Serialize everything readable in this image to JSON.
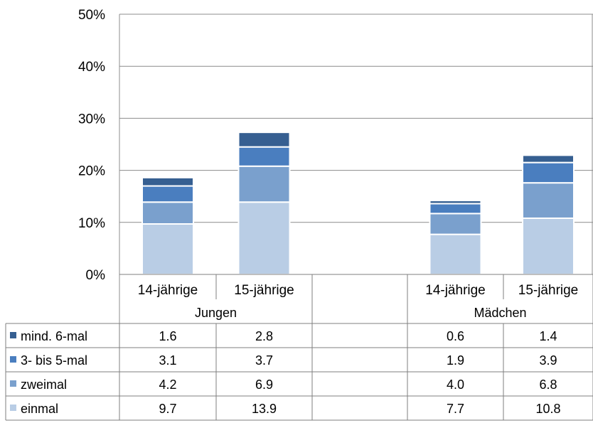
{
  "chart_data": {
    "type": "bar",
    "stacked": true,
    "y_tick_labels": [
      "0%",
      "10%",
      "20%",
      "30%",
      "40%",
      "50%"
    ],
    "ylim": [
      0,
      50
    ],
    "grid": true,
    "legend_placement": "data-table",
    "groups": [
      "Jungen",
      "",
      "Mädchen"
    ],
    "categories": [
      "14-jährige",
      "15-jährige",
      "",
      "14-jährige",
      "15-jährige"
    ],
    "series": [
      {
        "name": "einmal",
        "color": "#b9cde5",
        "values": [
          9.7,
          13.9,
          null,
          7.7,
          10.8
        ],
        "labels": [
          "9.7",
          "13.9",
          "",
          "7.7",
          "10.8"
        ]
      },
      {
        "name": "zweimal",
        "color": "#7aa0cd",
        "values": [
          4.2,
          6.9,
          null,
          4.0,
          6.8
        ],
        "labels": [
          "4.2",
          "6.9",
          "",
          "4.0",
          "6.8"
        ]
      },
      {
        "name": "3- bis 5-mal",
        "color": "#4a7ebf",
        "values": [
          3.1,
          3.7,
          null,
          1.9,
          3.9
        ],
        "labels": [
          "3.1",
          "3.7",
          "",
          "1.9",
          "3.9"
        ]
      },
      {
        "name": "mind. 6-mal",
        "color": "#365f91",
        "values": [
          1.6,
          2.8,
          null,
          0.6,
          1.4
        ],
        "labels": [
          "1.6",
          "2.8",
          "",
          "0.6",
          "1.4"
        ]
      }
    ]
  }
}
